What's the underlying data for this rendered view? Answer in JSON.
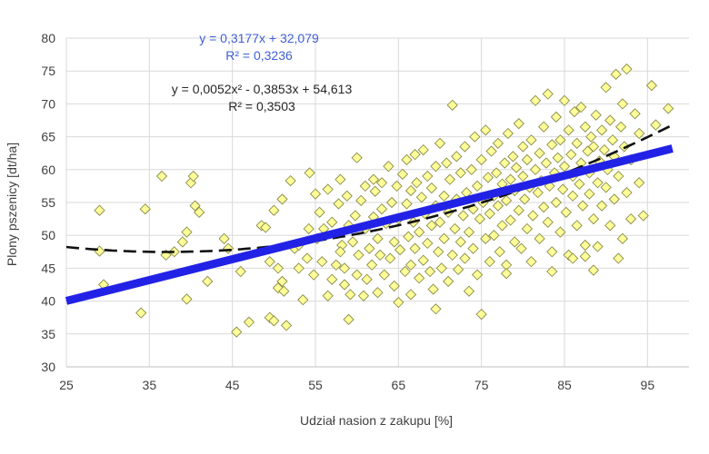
{
  "chart_data": {
    "type": "scatter",
    "title": "",
    "xlabel": "Udział nasion z zakupu [%]",
    "ylabel": "Plony pszenicy [dt/ha]",
    "xlim": [
      25,
      100
    ],
    "ylim": [
      30,
      80
    ],
    "x_ticks": [
      25,
      35,
      45,
      55,
      65,
      75,
      85,
      95
    ],
    "x_tick_labels": [
      "25",
      "35",
      "45",
      "55",
      "65",
      "75",
      "85",
      "95"
    ],
    "y_ticks": [
      30,
      35,
      40,
      45,
      50,
      55,
      60,
      65,
      70,
      75,
      80
    ],
    "y_tick_labels": [
      "30",
      "35",
      "40",
      "45",
      "50",
      "55",
      "60",
      "65",
      "70",
      "75",
      "80"
    ],
    "grid": true,
    "legend": "none",
    "colors": {
      "points_fill": "#ffff99",
      "points_stroke": "#8a8a4a",
      "linear_trend": "#2222e6",
      "poly_trend": "#111111",
      "grid": "#d9d9d9",
      "linear_eq_text": "#3f5fd6"
    },
    "annotations": {
      "linear_equation": "y = 0,3177x + 32,079",
      "linear_r2": "R² = 0,3236",
      "poly_equation": "y = 0,0052x² - 0,3853x + 54,613",
      "poly_r2": "R² = 0,3503"
    },
    "trendlines": {
      "linear": {
        "slope": 0.3177,
        "intercept": 32.079,
        "x_range": [
          25,
          98
        ]
      },
      "polynomial": {
        "a": 0.0052,
        "b": -0.3853,
        "c": 54.613,
        "x_range": [
          25,
          98
        ]
      }
    },
    "points": [
      [
        29,
        53.8
      ],
      [
        29,
        47.6
      ],
      [
        29.5,
        42.5
      ],
      [
        34,
        38.2
      ],
      [
        34.5,
        54
      ],
      [
        36.5,
        59
      ],
      [
        37,
        47
      ],
      [
        38,
        47.5
      ],
      [
        39,
        49
      ],
      [
        39.5,
        50.5
      ],
      [
        39.5,
        40.3
      ],
      [
        40,
        58
      ],
      [
        40.3,
        59
      ],
      [
        40.5,
        54.5
      ],
      [
        41,
        53.5
      ],
      [
        42,
        43
      ],
      [
        44,
        49.5
      ],
      [
        44.5,
        48
      ],
      [
        45.5,
        35.3
      ],
      [
        46,
        44.5
      ],
      [
        47,
        36.8
      ],
      [
        48.5,
        51.5
      ],
      [
        49,
        51.2
      ],
      [
        49.5,
        37.5
      ],
      [
        49.5,
        46
      ],
      [
        50,
        53.8
      ],
      [
        50,
        37
      ],
      [
        50.5,
        42
      ],
      [
        50.5,
        45
      ],
      [
        51,
        43
      ],
      [
        51,
        55.5
      ],
      [
        51.2,
        41.5
      ],
      [
        51.5,
        36.3
      ],
      [
        52,
        58.3
      ],
      [
        52.5,
        48
      ],
      [
        53,
        45
      ],
      [
        53,
        48.5
      ],
      [
        53.5,
        40.2
      ],
      [
        54,
        46.5
      ],
      [
        54.2,
        51
      ],
      [
        54.3,
        59.5
      ],
      [
        54.8,
        44
      ],
      [
        55,
        56.3
      ],
      [
        55.2,
        49.5
      ],
      [
        55.5,
        53.5
      ],
      [
        55.8,
        46
      ],
      [
        56,
        51
      ],
      [
        56.5,
        57
      ],
      [
        57,
        43.3
      ],
      [
        57,
        52
      ],
      [
        57.5,
        45.5
      ],
      [
        57.8,
        54.8
      ],
      [
        58,
        58.5
      ],
      [
        58.2,
        48.5
      ],
      [
        58.5,
        42.5
      ],
      [
        58.5,
        45
      ],
      [
        58.8,
        56
      ],
      [
        59,
        51.5
      ],
      [
        59,
        37.2
      ],
      [
        59.2,
        41
      ],
      [
        59.5,
        49
      ],
      [
        59.8,
        53
      ],
      [
        60,
        44
      ],
      [
        60,
        61.8
      ],
      [
        60.2,
        47
      ],
      [
        60.5,
        55.3
      ],
      [
        60.8,
        40.8
      ],
      [
        61,
        51
      ],
      [
        61,
        57.5
      ],
      [
        61.2,
        43.3
      ],
      [
        61.5,
        48
      ],
      [
        61.8,
        45.5
      ],
      [
        62,
        52.8
      ],
      [
        62.2,
        56.7
      ],
      [
        62.5,
        41.3
      ],
      [
        62.5,
        49.5
      ],
      [
        62.8,
        47
      ],
      [
        63,
        54
      ],
      [
        63,
        58
      ],
      [
        63.3,
        44
      ],
      [
        63.5,
        51.8
      ],
      [
        63.8,
        60.5
      ],
      [
        64,
        46.5
      ],
      [
        64.2,
        55
      ],
      [
        64.5,
        49
      ],
      [
        64.5,
        42.3
      ],
      [
        64.8,
        57.5
      ],
      [
        65,
        52.5
      ],
      [
        65,
        39.8
      ],
      [
        65.2,
        47.8
      ],
      [
        65.5,
        59.3
      ],
      [
        65.8,
        44.5
      ],
      [
        66,
        54.8
      ],
      [
        66,
        61.5
      ],
      [
        66.2,
        49.8
      ],
      [
        66.5,
        45.5
      ],
      [
        66.5,
        56.8
      ],
      [
        66.8,
        52
      ],
      [
        67,
        48
      ],
      [
        67,
        62.3
      ],
      [
        67.2,
        58
      ],
      [
        67.5,
        43.5
      ],
      [
        67.5,
        50.5
      ],
      [
        67.8,
        55.8
      ],
      [
        68,
        46.2
      ],
      [
        68,
        63
      ],
      [
        68.2,
        53.3
      ],
      [
        68.5,
        48.8
      ],
      [
        68.5,
        59
      ],
      [
        68.8,
        44.5
      ],
      [
        69,
        51.5
      ],
      [
        69,
        57.2
      ],
      [
        69.2,
        41.8
      ],
      [
        69.5,
        54.5
      ],
      [
        69.5,
        60.5
      ],
      [
        69.8,
        47.5
      ],
      [
        70,
        52
      ],
      [
        70,
        64
      ],
      [
        70.2,
        45
      ],
      [
        70.5,
        56
      ],
      [
        70.5,
        49.5
      ],
      [
        70.8,
        61
      ],
      [
        71,
        43
      ],
      [
        71,
        53.5
      ],
      [
        71.2,
        58.5
      ],
      [
        71.5,
        47
      ],
      [
        71.5,
        69.8
      ],
      [
        71.8,
        51
      ],
      [
        72,
        55.5
      ],
      [
        72,
        62
      ],
      [
        72.2,
        44.8
      ],
      [
        72.5,
        49
      ],
      [
        72.5,
        59.5
      ],
      [
        72.8,
        53
      ],
      [
        73,
        46.5
      ],
      [
        73,
        63.5
      ],
      [
        73.2,
        56.5
      ],
      [
        73.5,
        50.5
      ],
      [
        73.5,
        41.5
      ],
      [
        73.8,
        60
      ],
      [
        74,
        54
      ],
      [
        74,
        48
      ],
      [
        74.2,
        65
      ],
      [
        74.5,
        57.5
      ],
      [
        74.5,
        44
      ],
      [
        74.8,
        52.5
      ],
      [
        75,
        61.5
      ],
      [
        75,
        38
      ],
      [
        75.2,
        55
      ],
      [
        75.5,
        49.5
      ],
      [
        75.5,
        66
      ],
      [
        75.8,
        58.8
      ],
      [
        76,
        53.3
      ],
      [
        76,
        46
      ],
      [
        76.2,
        62.8
      ],
      [
        76.5,
        56
      ],
      [
        76.5,
        50
      ],
      [
        76.8,
        59.5
      ],
      [
        77,
        54.5
      ],
      [
        77,
        64
      ],
      [
        77.2,
        47.5
      ],
      [
        77.5,
        57.8
      ],
      [
        77.5,
        51.5
      ],
      [
        77.8,
        61
      ],
      [
        78,
        55.3
      ],
      [
        78,
        45.5
      ],
      [
        78.2,
        65.5
      ],
      [
        78.5,
        58.5
      ],
      [
        78.5,
        52.3
      ],
      [
        78.8,
        62
      ],
      [
        79,
        49
      ],
      [
        79,
        56.8
      ],
      [
        79.2,
        60.3
      ],
      [
        79.5,
        53.8
      ],
      [
        79.5,
        67
      ],
      [
        79.8,
        48
      ],
      [
        80,
        59
      ],
      [
        80,
        63.5
      ],
      [
        80.2,
        55.5
      ],
      [
        80.5,
        51
      ],
      [
        80.5,
        61.5
      ],
      [
        80.8,
        57.3
      ],
      [
        81,
        64.5
      ],
      [
        81,
        46
      ],
      [
        81.2,
        53
      ],
      [
        81.5,
        60
      ],
      [
        81.5,
        70.5
      ],
      [
        81.8,
        56.5
      ],
      [
        82,
        62.5
      ],
      [
        82,
        49.5
      ],
      [
        82.2,
        58.3
      ],
      [
        82.5,
        66.5
      ],
      [
        82.5,
        54.3
      ],
      [
        82.8,
        61
      ],
      [
        83,
        52
      ],
      [
        83,
        71.5
      ],
      [
        83.2,
        57.5
      ],
      [
        83.5,
        63.8
      ],
      [
        83.5,
        47.5
      ],
      [
        83.8,
        59.5
      ],
      [
        84,
        55
      ],
      [
        84,
        68
      ],
      [
        84.2,
        61.8
      ],
      [
        84.5,
        50.5
      ],
      [
        84.5,
        64.5
      ],
      [
        84.8,
        57
      ],
      [
        85,
        60.5
      ],
      [
        85,
        70.5
      ],
      [
        85.2,
        53.5
      ],
      [
        85.5,
        66
      ],
      [
        85.5,
        47
      ],
      [
        85.8,
        62.3
      ],
      [
        86,
        56
      ],
      [
        86,
        59
      ],
      [
        86.2,
        68.8
      ],
      [
        86.5,
        51.5
      ],
      [
        86.5,
        64
      ],
      [
        86.8,
        57.8
      ],
      [
        87,
        61
      ],
      [
        87,
        69.5
      ],
      [
        87.2,
        54.5
      ],
      [
        87.5,
        66.5
      ],
      [
        87.5,
        48.5
      ],
      [
        87.8,
        62.8
      ],
      [
        88,
        59.5
      ],
      [
        88,
        56.3
      ],
      [
        88.2,
        65
      ],
      [
        88.5,
        52.5
      ],
      [
        88.5,
        63.5
      ],
      [
        88.8,
        68.3
      ],
      [
        89,
        58
      ],
      [
        89,
        48.3
      ],
      [
        89.2,
        61.3
      ],
      [
        89.5,
        54.5
      ],
      [
        89.5,
        66
      ],
      [
        89.8,
        63
      ],
      [
        90,
        57.3
      ],
      [
        90,
        72.5
      ],
      [
        90.2,
        60
      ],
      [
        90.5,
        51.5
      ],
      [
        90.5,
        67.5
      ],
      [
        90.8,
        64.5
      ],
      [
        91,
        55.5
      ],
      [
        91,
        62
      ],
      [
        91.2,
        74.5
      ],
      [
        91.5,
        46.5
      ],
      [
        91.5,
        59
      ],
      [
        91.8,
        66.5
      ],
      [
        92,
        49.5
      ],
      [
        92,
        70
      ],
      [
        92.2,
        63.5
      ],
      [
        92.5,
        56.5
      ],
      [
        92.5,
        75.3
      ],
      [
        93,
        61.5
      ],
      [
        93,
        52.5
      ],
      [
        93.5,
        68.5
      ],
      [
        94,
        58
      ],
      [
        94,
        65.5
      ],
      [
        94.5,
        53
      ],
      [
        95.5,
        72.8
      ],
      [
        96,
        66.8
      ],
      [
        97.5,
        69.3
      ],
      [
        86,
        46.5
      ],
      [
        87.5,
        46.8
      ],
      [
        62,
        58.5
      ],
      [
        58,
        47.5
      ],
      [
        56.5,
        40.8
      ],
      [
        69.5,
        38.8
      ],
      [
        66.5,
        41
      ],
      [
        78,
        44.2
      ],
      [
        83.5,
        44.5
      ],
      [
        88.5,
        44.7
      ]
    ]
  }
}
